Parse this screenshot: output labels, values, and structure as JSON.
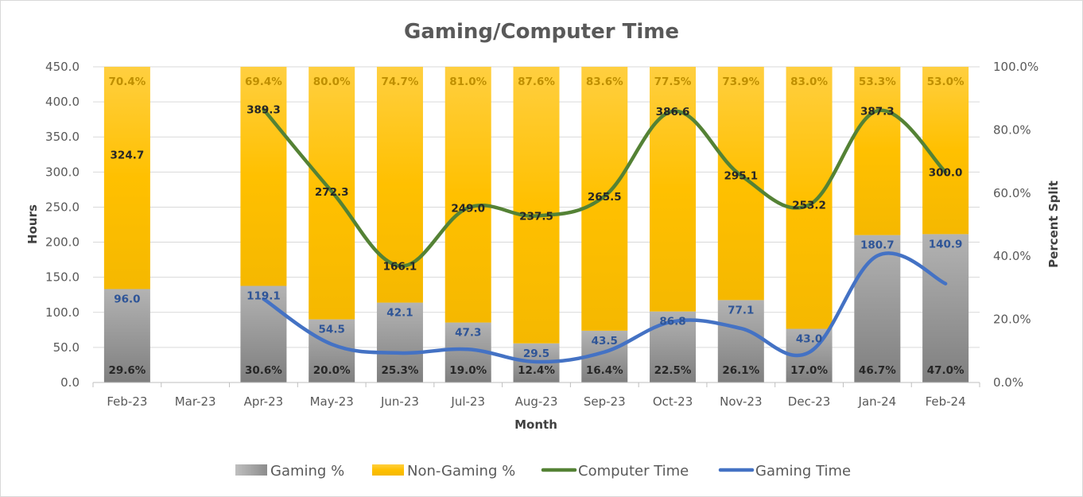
{
  "chart_data": {
    "type": "bar",
    "subtype": "stacked-percent-bars-with-lines",
    "title": "Gaming/Computer Time",
    "xlabel": "Month",
    "ylabel": "Hours",
    "y2label": "Percent Split",
    "ylim": [
      0,
      450
    ],
    "y2lim": [
      0,
      100
    ],
    "y_ticks": [
      "0.0",
      "50.0",
      "100.0",
      "150.0",
      "200.0",
      "250.0",
      "300.0",
      "350.0",
      "400.0",
      "450.0"
    ],
    "y2_ticks": [
      "0.0%",
      "20.0%",
      "40.0%",
      "60.0%",
      "80.0%",
      "100.0%"
    ],
    "grid": true,
    "legend_position": "bottom",
    "categories": [
      "Feb-23",
      "Mar-23",
      "Apr-23",
      "May-23",
      "Jun-23",
      "Jul-23",
      "Aug-23",
      "Sep-23",
      "Oct-23",
      "Nov-23",
      "Dec-23",
      "Jan-24",
      "Feb-24"
    ],
    "series": [
      {
        "name": "Gaming %",
        "kind": "bar",
        "axis": "right",
        "color": "#a6a6a6",
        "values": [
          29.6,
          null,
          30.6,
          20.0,
          25.3,
          19.0,
          12.4,
          16.4,
          22.5,
          26.1,
          17.0,
          46.7,
          47.0
        ],
        "labels": [
          "29.6%",
          "",
          "30.6%",
          "20.0%",
          "25.3%",
          "19.0%",
          "12.4%",
          "16.4%",
          "22.5%",
          "26.1%",
          "17.0%",
          "46.7%",
          "47.0%"
        ]
      },
      {
        "name": "Non-Gaming %",
        "kind": "bar",
        "axis": "right",
        "color": "#ffc000",
        "values": [
          70.4,
          null,
          69.4,
          80.0,
          74.7,
          81.0,
          87.6,
          83.6,
          77.5,
          73.9,
          83.0,
          53.3,
          53.0
        ],
        "labels": [
          "70.4%",
          "",
          "69.4%",
          "80.0%",
          "74.7%",
          "81.0%",
          "87.6%",
          "83.6%",
          "77.5%",
          "73.9%",
          "83.0%",
          "53.3%",
          "53.0%"
        ]
      },
      {
        "name": "Computer Time",
        "kind": "line",
        "axis": "left",
        "color": "#548235",
        "values": [
          324.7,
          null,
          389.3,
          272.3,
          166.1,
          249.0,
          237.5,
          265.5,
          386.6,
          295.1,
          253.2,
          387.3,
          300.0
        ],
        "labels": [
          "324.7",
          "",
          "389.3",
          "272.3",
          "166.1",
          "249.0",
          "237.5",
          "265.5",
          "386.6",
          "295.1",
          "253.2",
          "387.3",
          "300.0"
        ]
      },
      {
        "name": "Gaming Time",
        "kind": "line",
        "axis": "left",
        "color": "#4472c4",
        "values": [
          96.0,
          null,
          119.1,
          54.5,
          42.1,
          47.3,
          29.5,
          43.5,
          86.8,
          77.1,
          43.0,
          180.7,
          140.9
        ],
        "labels": [
          "96.0",
          "",
          "119.1",
          "54.5",
          "42.1",
          "47.3",
          "29.5",
          "43.5",
          "86.8",
          "77.1",
          "43.0",
          "180.7",
          "140.9"
        ]
      }
    ]
  }
}
